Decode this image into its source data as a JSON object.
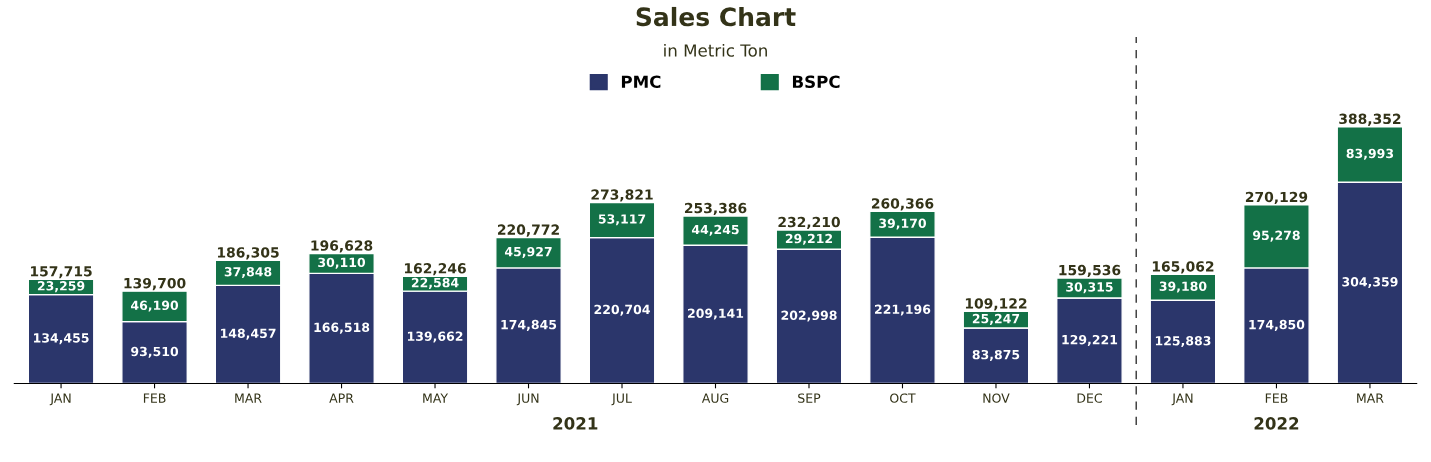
{
  "chart_data": {
    "type": "bar",
    "title": "Sales Chart",
    "subtitle": "in Metric Ton",
    "stacked": true,
    "legend": "top",
    "grid": false,
    "categories": [
      "JAN",
      "FEB",
      "MAR",
      "APR",
      "MAY",
      "JUN",
      "JUL",
      "AUG",
      "SEP",
      "OCT",
      "NOV",
      "DEC",
      "JAN",
      "FEB",
      "MAR"
    ],
    "series": [
      {
        "name": "PMC",
        "color": "#2b366b",
        "values": [
          134455,
          93510,
          148457,
          166518,
          139662,
          174845,
          220704,
          209141,
          202998,
          221196,
          83875,
          129221,
          125883,
          174850,
          304359
        ],
        "value_labels": [
          "134,455",
          "93,510",
          "148,457",
          "166,518",
          "139,662",
          "174,845",
          "220,704",
          "209,141",
          "202,998",
          "221,196",
          "83,875",
          "129,221",
          "125,883",
          "174,850",
          "304,359"
        ]
      },
      {
        "name": "BSPC",
        "color": "#137147",
        "values": [
          23259,
          46190,
          37848,
          30110,
          22584,
          45927,
          53117,
          44245,
          29212,
          39170,
          25247,
          30315,
          39180,
          95278,
          83993
        ],
        "value_labels": [
          "23,259",
          "46,190",
          "37,848",
          "30,110",
          "22,584",
          "45,927",
          "53,117",
          "44,245",
          "29,212",
          "39,170",
          "25,247",
          "30,315",
          "39,180",
          "95,278",
          "83,993"
        ]
      }
    ],
    "totals": [
      "157,715",
      "139,700",
      "186,305",
      "196,628",
      "162,246",
      "220,772",
      "273,821",
      "253,386",
      "232,210",
      "260,366",
      "109,122",
      "159,536",
      "165,062",
      "270,129",
      "388,352"
    ],
    "annotations": [
      "2021",
      "2022"
    ]
  }
}
